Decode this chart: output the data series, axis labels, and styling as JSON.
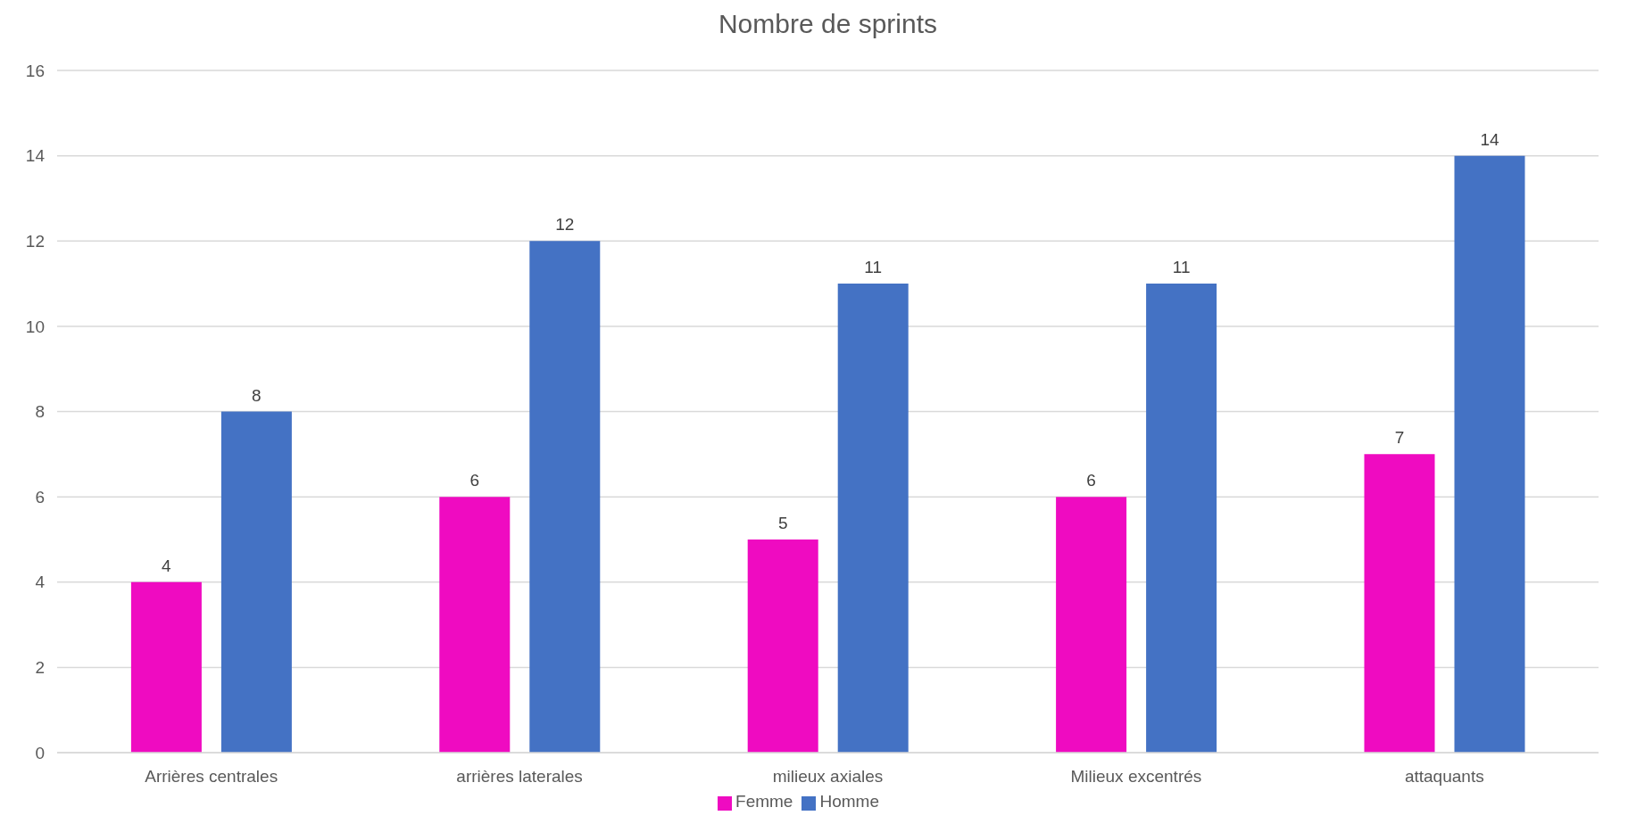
{
  "chart_data": {
    "type": "bar",
    "title": "Nombre de sprints",
    "categories": [
      "Arrières centrales",
      "arrières laterales",
      "milieux axiales",
      "Milieux excentrés",
      "attaquants"
    ],
    "series": [
      {
        "name": "Femme",
        "color": "#ef0bc1",
        "values": [
          4,
          6,
          5,
          6,
          7
        ]
      },
      {
        "name": "Homme",
        "color": "#4472c4",
        "values": [
          8,
          12,
          11,
          11,
          14
        ]
      }
    ],
    "ylim": [
      0,
      16
    ],
    "yticks": [
      0,
      2,
      4,
      6,
      8,
      10,
      12,
      14,
      16
    ],
    "grid": "y",
    "legend": "bottom",
    "data_labels": true
  }
}
